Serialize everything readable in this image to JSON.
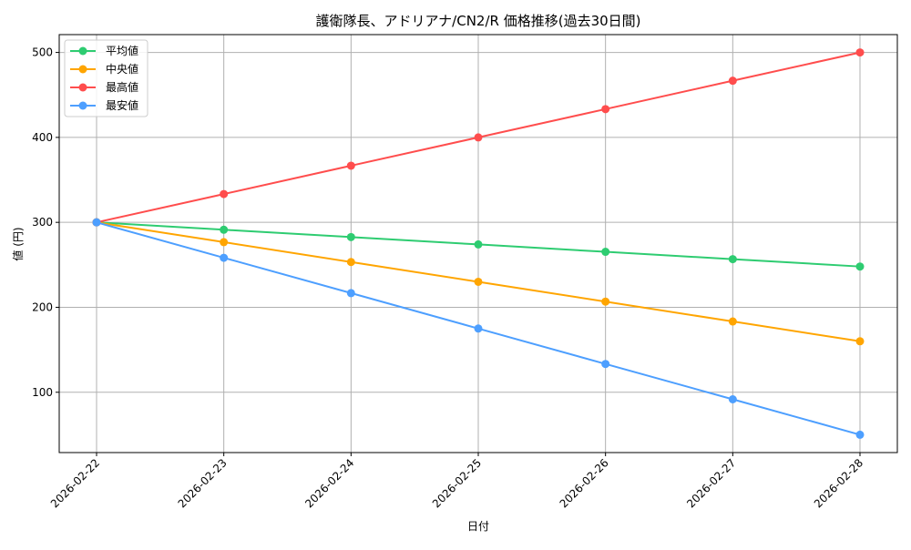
{
  "chart_data": {
    "type": "line",
    "title": "護衛隊長、アドリアナ/CN2/R 価格推移(過去30日間)",
    "xlabel": "日付",
    "ylabel": "値 (円)",
    "categories": [
      "2026-02-22",
      "2026-02-23",
      "2026-02-24",
      "2026-02-25",
      "2026-02-26",
      "2026-02-27",
      "2026-02-28"
    ],
    "ylim": [
      29,
      521
    ],
    "yticks": [
      100,
      200,
      300,
      400,
      500
    ],
    "grid": true,
    "legend_position": "top-left",
    "series": [
      {
        "name": "平均値",
        "color": "#2ecc71",
        "values": [
          300,
          291.3,
          282.7,
          274,
          265.3,
          256.7,
          248
        ]
      },
      {
        "name": "中央値",
        "color": "#ffa500",
        "values": [
          300,
          276.7,
          253.3,
          230,
          206.7,
          183.3,
          160
        ]
      },
      {
        "name": "最高値",
        "color": "#ff4d4d",
        "values": [
          300,
          333.3,
          366.7,
          400,
          433.3,
          466.7,
          500
        ]
      },
      {
        "name": "最安値",
        "color": "#4d9fff",
        "values": [
          300,
          258.3,
          216.7,
          175,
          133.3,
          91.7,
          50
        ]
      }
    ]
  }
}
